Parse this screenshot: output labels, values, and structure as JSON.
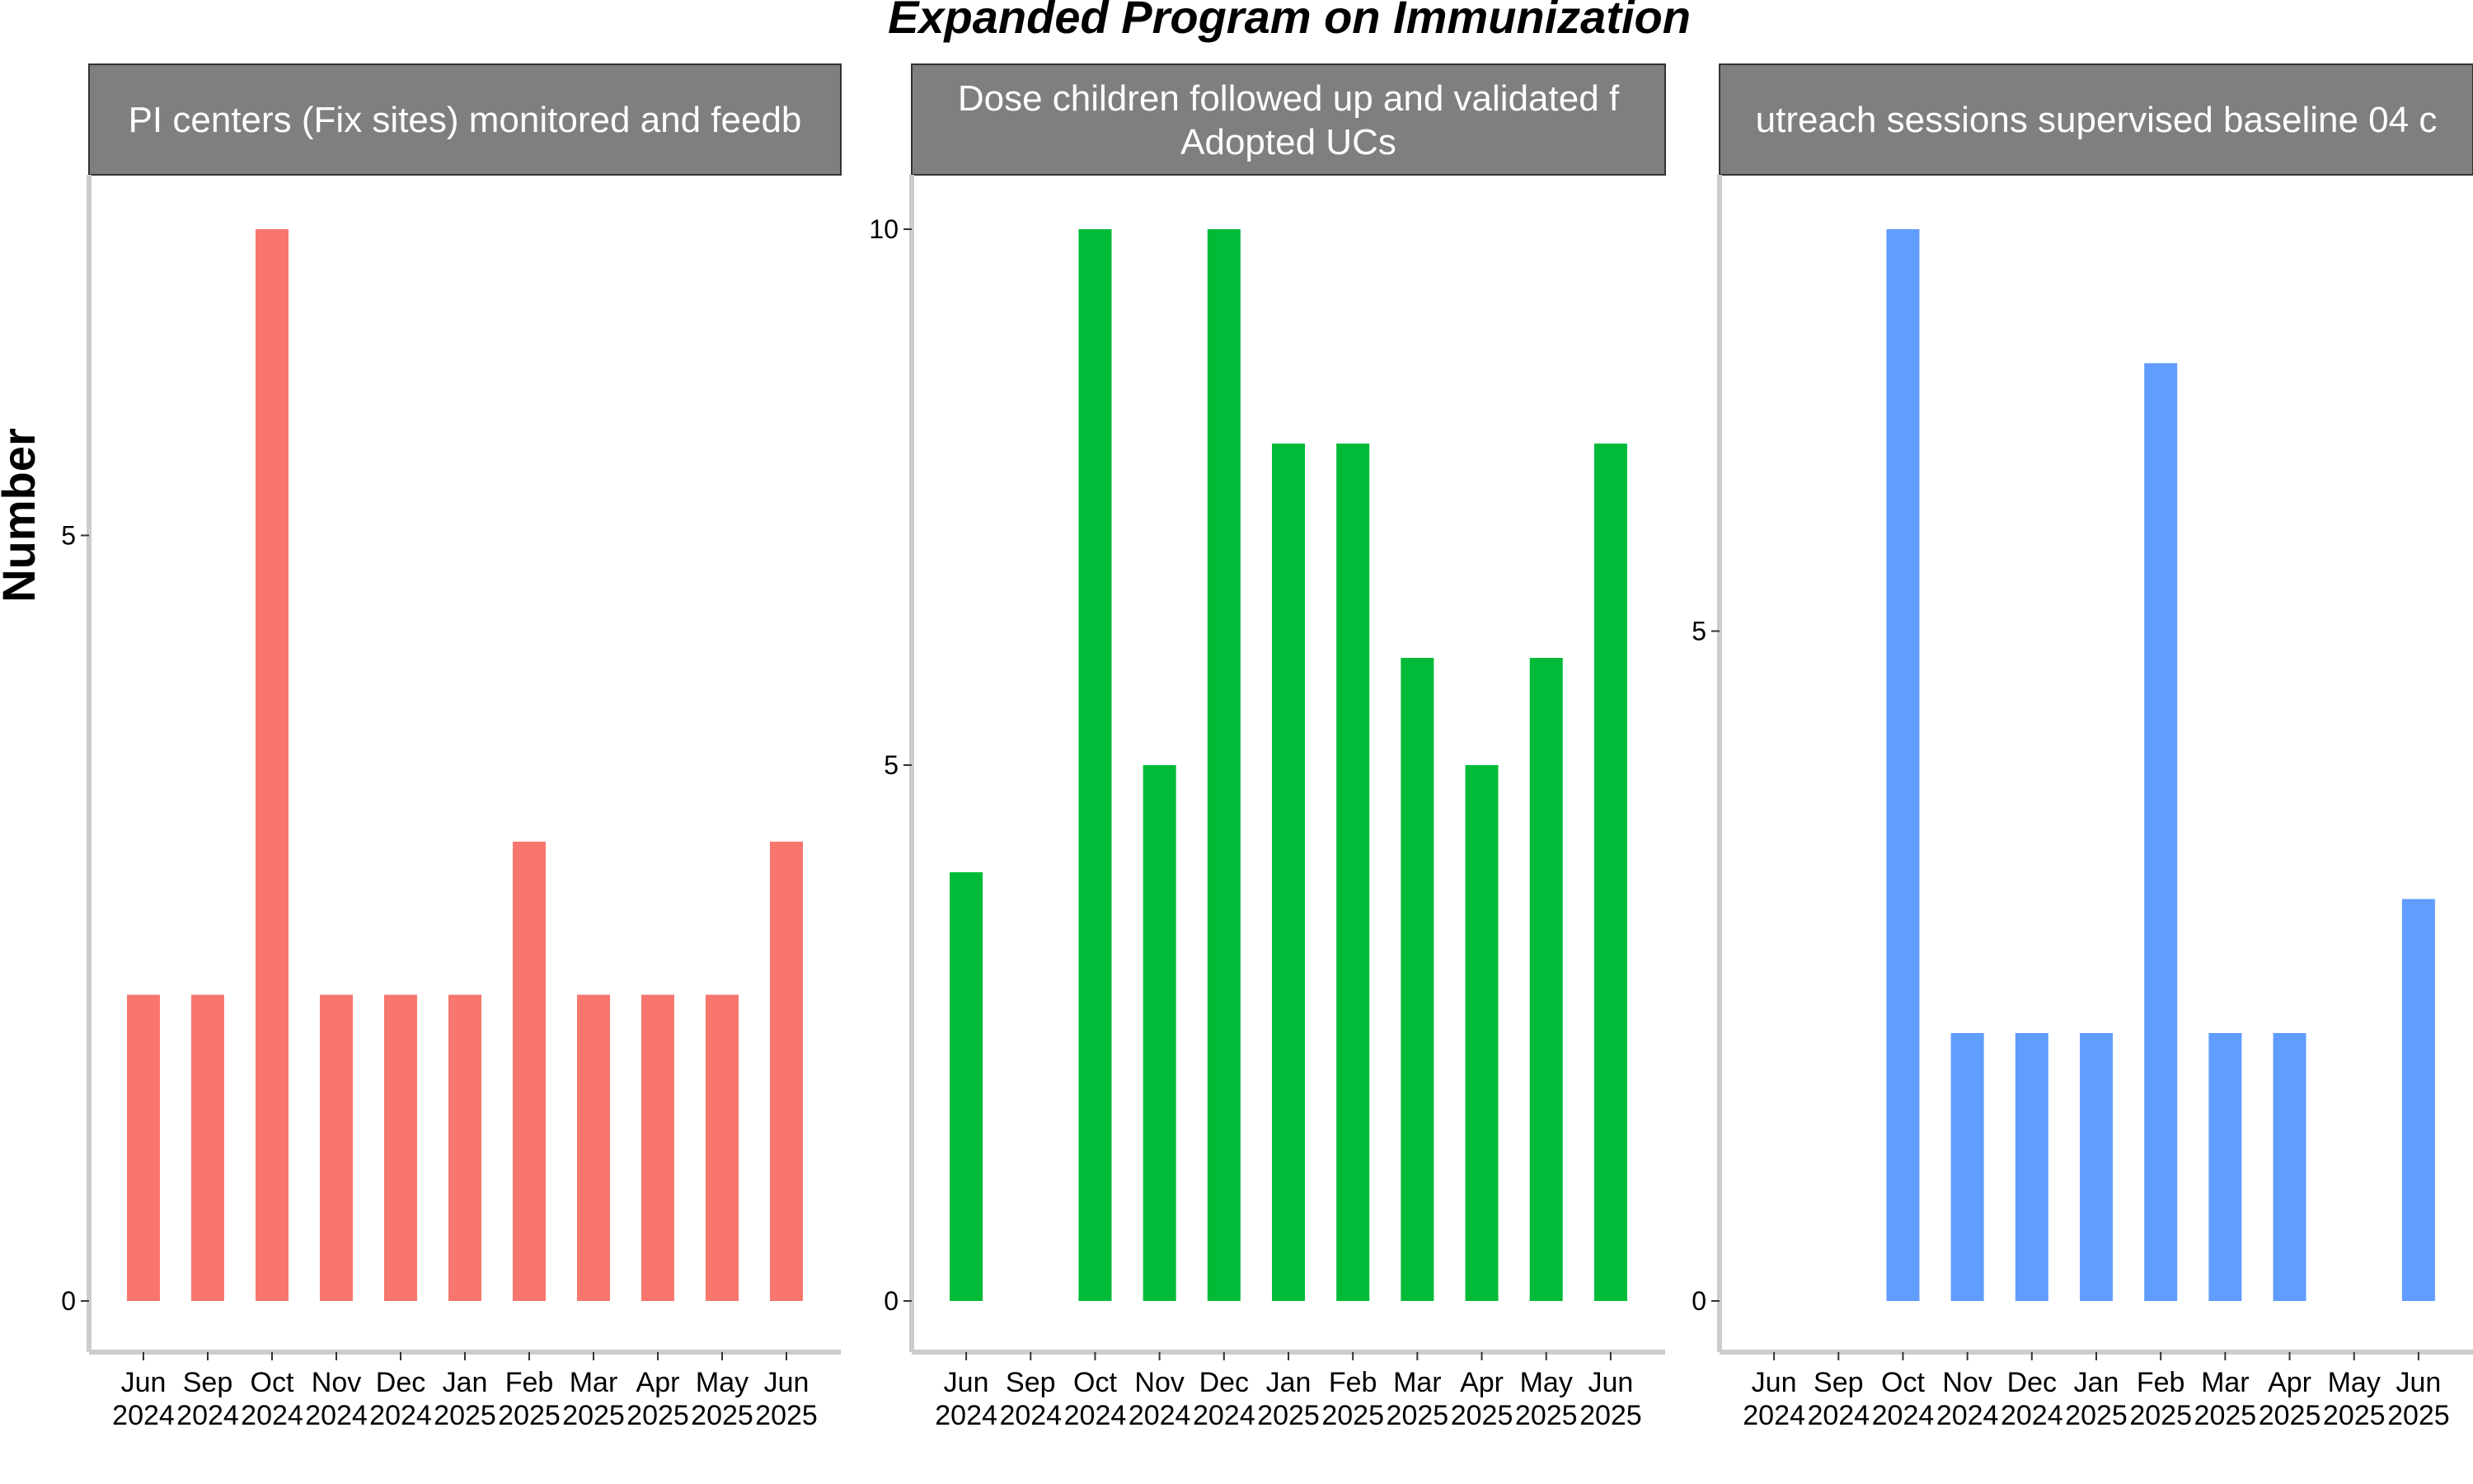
{
  "title": "Expanded Program on Immunization",
  "ylabel": "Number",
  "chart_data": [
    {
      "type": "bar",
      "title": "PI centers (Fix sites) monitored and feedb",
      "title_line2": "",
      "color": "#F8766D",
      "categories": [
        {
          "month": "Jun",
          "year": "2024"
        },
        {
          "month": "Sep",
          "year": "2024"
        },
        {
          "month": "Oct",
          "year": "2024"
        },
        {
          "month": "Nov",
          "year": "2024"
        },
        {
          "month": "Dec",
          "year": "2024"
        },
        {
          "month": "Jan",
          "year": "2025"
        },
        {
          "month": "Feb",
          "year": "2025"
        },
        {
          "month": "Mar",
          "year": "2025"
        },
        {
          "month": "Apr",
          "year": "2025"
        },
        {
          "month": "May",
          "year": "2025"
        },
        {
          "month": "Jun",
          "year": "2025"
        }
      ],
      "values": [
        2,
        2,
        7,
        2,
        2,
        2,
        3,
        2,
        2,
        2,
        3
      ],
      "ylim": [
        0,
        7
      ],
      "yticks": [
        0,
        5
      ]
    },
    {
      "type": "bar",
      "title": "Dose children followed up and validated f",
      "title_line2": "Adopted UCs",
      "color": "#00BA38",
      "categories": [
        {
          "month": "Jun",
          "year": "2024"
        },
        {
          "month": "Sep",
          "year": "2024"
        },
        {
          "month": "Oct",
          "year": "2024"
        },
        {
          "month": "Nov",
          "year": "2024"
        },
        {
          "month": "Dec",
          "year": "2024"
        },
        {
          "month": "Jan",
          "year": "2025"
        },
        {
          "month": "Feb",
          "year": "2025"
        },
        {
          "month": "Mar",
          "year": "2025"
        },
        {
          "month": "Apr",
          "year": "2025"
        },
        {
          "month": "May",
          "year": "2025"
        },
        {
          "month": "Jun",
          "year": "2025"
        }
      ],
      "values": [
        4,
        0,
        10,
        5,
        10,
        8,
        8,
        6,
        5,
        6,
        8
      ],
      "ylim": [
        0,
        10
      ],
      "yticks": [
        0,
        5,
        10
      ]
    },
    {
      "type": "bar",
      "title": "utreach sessions supervised baseline 04 c",
      "title_line2": "",
      "color": "#619CFF",
      "categories": [
        {
          "month": "Jun",
          "year": "2024"
        },
        {
          "month": "Sep",
          "year": "2024"
        },
        {
          "month": "Oct",
          "year": "2024"
        },
        {
          "month": "Nov",
          "year": "2024"
        },
        {
          "month": "Dec",
          "year": "2024"
        },
        {
          "month": "Jan",
          "year": "2025"
        },
        {
          "month": "Feb",
          "year": "2025"
        },
        {
          "month": "Mar",
          "year": "2025"
        },
        {
          "month": "Apr",
          "year": "2025"
        },
        {
          "month": "May",
          "year": "2025"
        },
        {
          "month": "Jun",
          "year": "2025"
        }
      ],
      "values": [
        0,
        0,
        8,
        2,
        2,
        2,
        7,
        2,
        2,
        0,
        3
      ],
      "ylim": [
        0,
        8
      ],
      "yticks": [
        0,
        5
      ]
    }
  ]
}
